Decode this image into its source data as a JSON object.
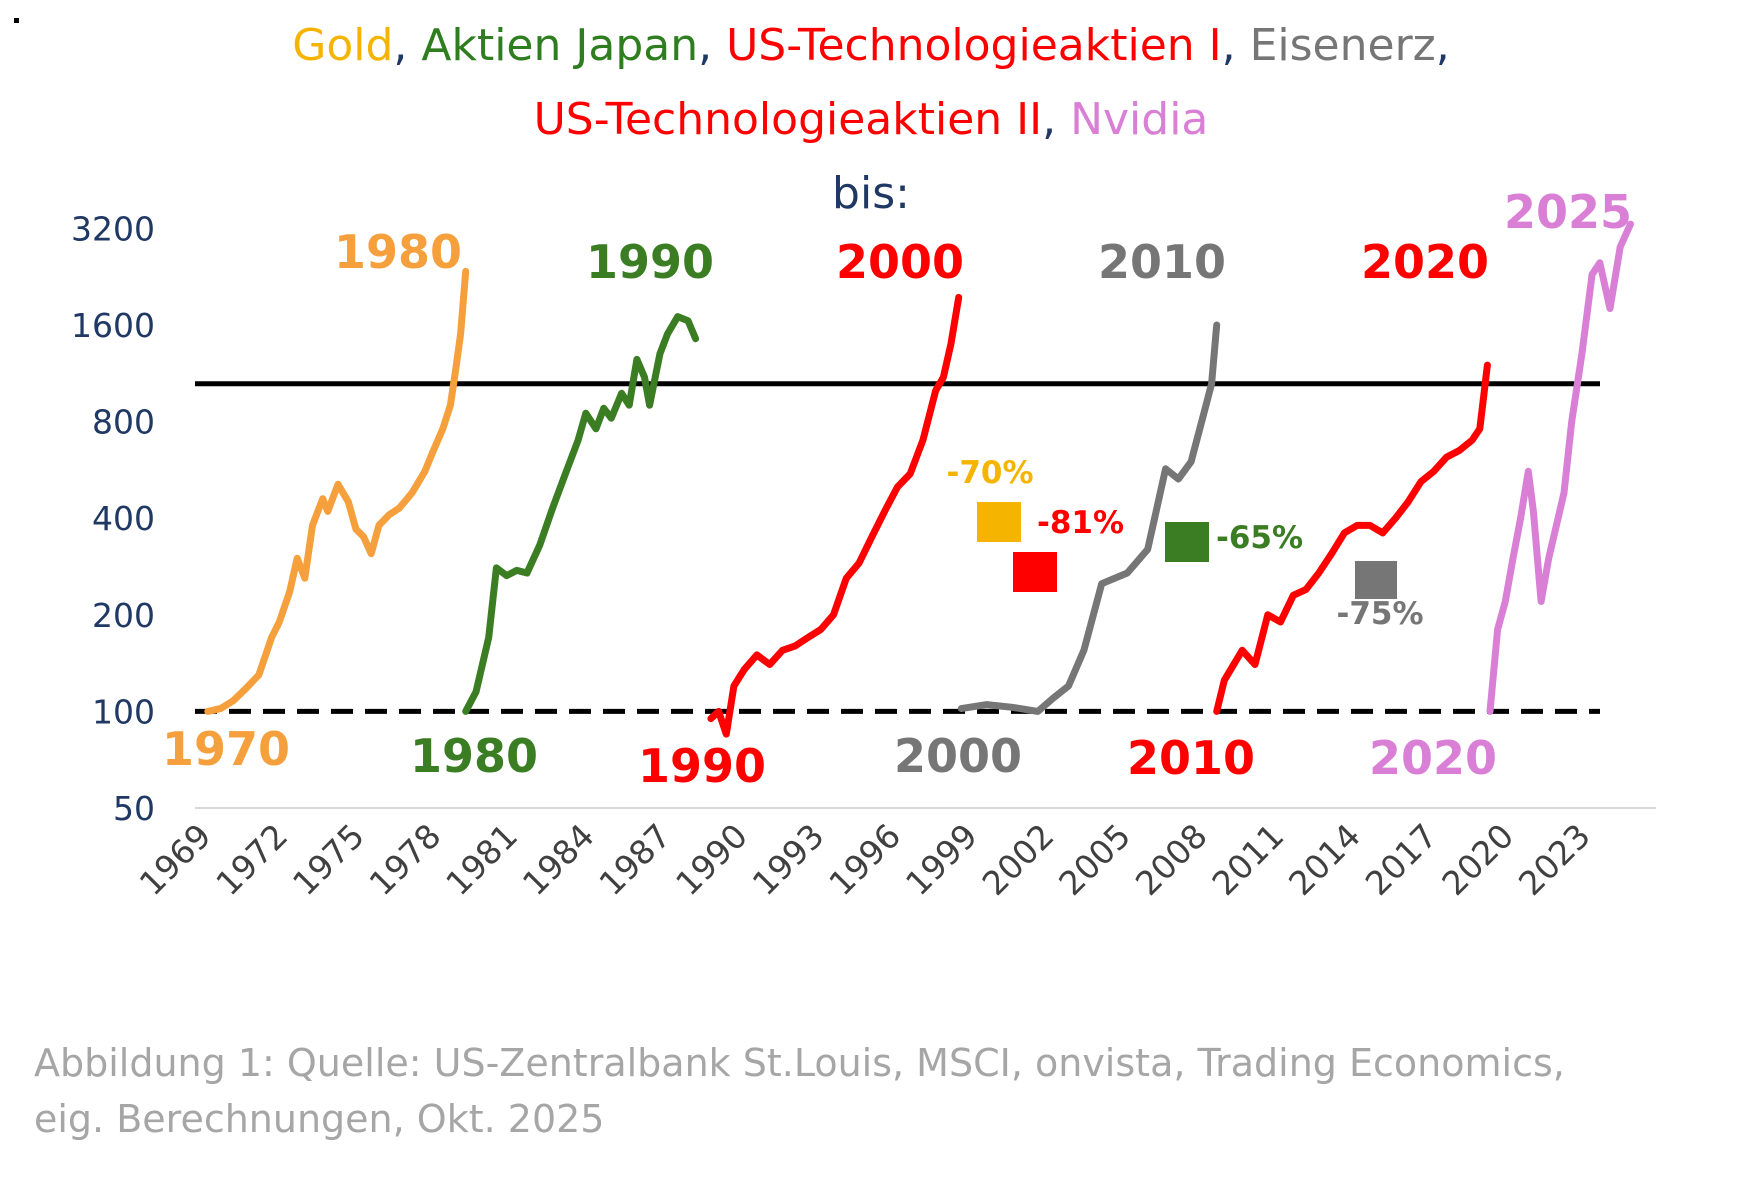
{
  "title": {
    "line1": [
      {
        "text": "Gold",
        "color": "#f5b400"
      },
      {
        "text": ", ",
        "color": "#1f3864"
      },
      {
        "text": "Aktien Japan",
        "color": "#2e7d1f"
      },
      {
        "text": ", ",
        "color": "#1f3864"
      },
      {
        "text": "US-Technologieaktien I",
        "color": "#ff0000"
      },
      {
        "text": ", ",
        "color": "#1f3864"
      },
      {
        "text": "Eisenerz",
        "color": "#767676"
      },
      {
        "text": ",",
        "color": "#1f3864"
      }
    ],
    "line2": [
      {
        "text": "US-Technologieaktien II",
        "color": "#ff0000"
      },
      {
        "text": ", ",
        "color": "#1f3864"
      },
      {
        "text": "Nvidia",
        "color": "#d97fd6"
      }
    ],
    "line3": "bis:"
  },
  "caption": {
    "line1": "Abbildung 1: Quelle: US-Zentralbank St.Louis, MSCI, onvista, Trading Economics,",
    "line2": "eig. Berechnungen, Okt. 2025"
  },
  "chart_data": {
    "type": "line",
    "x_axis": {
      "ticks": [
        "1969",
        "1972",
        "1975",
        "1978",
        "1981",
        "1984",
        "1987",
        "1990",
        "1993",
        "1996",
        "1999",
        "2002",
        "2005",
        "2008",
        "2011",
        "2014",
        "2017",
        "2020",
        "2023"
      ]
    },
    "y_axis": {
      "scale": "log2",
      "ticks": [
        50,
        100,
        200,
        400,
        800,
        1600,
        3200
      ],
      "range": [
        50,
        3600
      ]
    },
    "reference_lines": [
      {
        "value": 100,
        "style": "dashed",
        "color": "#000000"
      },
      {
        "value": 1050,
        "style": "solid",
        "color": "#000000"
      }
    ],
    "series": [
      {
        "color": "#f5a03c",
        "start_label": "1970",
        "end_label": "1980",
        "points": [
          [
            1969.5,
            100
          ],
          [
            1970,
            102
          ],
          [
            1970.5,
            108
          ],
          [
            1971,
            118
          ],
          [
            1971.5,
            130
          ],
          [
            1972,
            170
          ],
          [
            1972.3,
            190
          ],
          [
            1972.7,
            235
          ],
          [
            1973,
            300
          ],
          [
            1973.3,
            260
          ],
          [
            1973.6,
            380
          ],
          [
            1974,
            460
          ],
          [
            1974.2,
            420
          ],
          [
            1974.6,
            510
          ],
          [
            1975,
            450
          ],
          [
            1975.3,
            370
          ],
          [
            1975.6,
            350
          ],
          [
            1975.9,
            310
          ],
          [
            1976.2,
            380
          ],
          [
            1976.6,
            410
          ],
          [
            1977,
            430
          ],
          [
            1977.5,
            480
          ],
          [
            1978,
            560
          ],
          [
            1978.3,
            640
          ],
          [
            1978.7,
            760
          ],
          [
            1979,
            900
          ],
          [
            1979.2,
            1150
          ],
          [
            1979.4,
            1500
          ],
          [
            1979.6,
            2350
          ]
        ]
      },
      {
        "color": "#3a7d22",
        "start_label": "1980",
        "end_label": "1990",
        "points": [
          [
            1979.6,
            100
          ],
          [
            1980,
            115
          ],
          [
            1980.5,
            170
          ],
          [
            1980.8,
            280
          ],
          [
            1981.2,
            265
          ],
          [
            1981.6,
            275
          ],
          [
            1982,
            270
          ],
          [
            1982.5,
            330
          ],
          [
            1983,
            430
          ],
          [
            1983.5,
            550
          ],
          [
            1984,
            700
          ],
          [
            1984.3,
            850
          ],
          [
            1984.7,
            760
          ],
          [
            1985,
            880
          ],
          [
            1985.3,
            820
          ],
          [
            1985.7,
            980
          ],
          [
            1986,
            900
          ],
          [
            1986.3,
            1250
          ],
          [
            1986.6,
            1100
          ],
          [
            1986.8,
            900
          ],
          [
            1987.2,
            1300
          ],
          [
            1987.5,
            1500
          ],
          [
            1987.9,
            1700
          ],
          [
            1988.3,
            1650
          ],
          [
            1988.6,
            1450
          ]
        ]
      },
      {
        "color": "#ff0000",
        "start_label": "1990",
        "end_label": "2000",
        "points": [
          [
            1989.2,
            95
          ],
          [
            1989.5,
            100
          ],
          [
            1989.8,
            85
          ],
          [
            1990.1,
            120
          ],
          [
            1990.5,
            135
          ],
          [
            1991,
            150
          ],
          [
            1991.5,
            140
          ],
          [
            1992,
            155
          ],
          [
            1992.5,
            160
          ],
          [
            1993,
            170
          ],
          [
            1993.5,
            180
          ],
          [
            1994,
            200
          ],
          [
            1994.5,
            260
          ],
          [
            1995,
            290
          ],
          [
            1995.5,
            350
          ],
          [
            1996,
            420
          ],
          [
            1996.5,
            500
          ],
          [
            1997,
            550
          ],
          [
            1997.5,
            700
          ],
          [
            1998,
            1000
          ],
          [
            1998.3,
            1100
          ],
          [
            1998.6,
            1400
          ],
          [
            1998.9,
            1950
          ]
        ]
      },
      {
        "color": "#767676",
        "start_label": "2000",
        "end_label": "2010",
        "points": [
          [
            1999,
            102
          ],
          [
            2000,
            105
          ],
          [
            2001,
            103
          ],
          [
            2002,
            100
          ],
          [
            2002.6,
            110
          ],
          [
            2003.2,
            120
          ],
          [
            2003.8,
            155
          ],
          [
            2004.5,
            250
          ],
          [
            2005.5,
            270
          ],
          [
            2006.3,
            320
          ],
          [
            2007,
            570
          ],
          [
            2007.5,
            530
          ],
          [
            2008,
            600
          ],
          [
            2008.5,
            850
          ],
          [
            2008.8,
            1050
          ],
          [
            2009,
            1600
          ]
        ]
      },
      {
        "color": "#ff0000",
        "start_label": "2010",
        "end_label": "2020",
        "points": [
          [
            2009,
            100
          ],
          [
            2009.3,
            125
          ],
          [
            2010,
            155
          ],
          [
            2010.5,
            140
          ],
          [
            2011,
            200
          ],
          [
            2011.5,
            190
          ],
          [
            2012,
            230
          ],
          [
            2012.5,
            240
          ],
          [
            2013,
            270
          ],
          [
            2013.5,
            310
          ],
          [
            2014,
            360
          ],
          [
            2014.5,
            380
          ],
          [
            2015,
            380
          ],
          [
            2015.5,
            360
          ],
          [
            2016,
            400
          ],
          [
            2016.5,
            450
          ],
          [
            2017,
            520
          ],
          [
            2017.5,
            560
          ],
          [
            2018,
            620
          ],
          [
            2018.5,
            650
          ],
          [
            2019,
            700
          ],
          [
            2019.3,
            760
          ],
          [
            2019.6,
            1200
          ]
        ]
      },
      {
        "color": "#d97fd6",
        "start_label": "2020",
        "end_label": "2025",
        "points": [
          [
            2019.7,
            100
          ],
          [
            2020,
            180
          ],
          [
            2020.3,
            220
          ],
          [
            2020.6,
            300
          ],
          [
            2020.9,
            400
          ],
          [
            2021.2,
            560
          ],
          [
            2021.4,
            420
          ],
          [
            2021.7,
            220
          ],
          [
            2022,
            300
          ],
          [
            2022.3,
            380
          ],
          [
            2022.6,
            480
          ],
          [
            2022.9,
            800
          ],
          [
            2023.3,
            1300
          ],
          [
            2023.7,
            2300
          ],
          [
            2024,
            2500
          ],
          [
            2024.4,
            1800
          ],
          [
            2024.8,
            2800
          ],
          [
            2025.2,
            3300
          ]
        ]
      }
    ],
    "annotations": [
      {
        "text": "1970",
        "color": "#f5a03c"
      },
      {
        "text": "1980",
        "color": "#f5a03c"
      },
      {
        "text": "1980",
        "color": "#3a7d22"
      },
      {
        "text": "1990",
        "color": "#3a7d22"
      },
      {
        "text": "1990",
        "color": "#ff0000"
      },
      {
        "text": "2000",
        "color": "#ff0000"
      },
      {
        "text": "2000",
        "color": "#767676"
      },
      {
        "text": "2010",
        "color": "#767676"
      },
      {
        "text": "2010",
        "color": "#ff0000"
      },
      {
        "text": "2020",
        "color": "#ff0000"
      },
      {
        "text": "2020",
        "color": "#d97fd6"
      },
      {
        "text": "2025",
        "color": "#d97fd6"
      }
    ],
    "drawdowns": [
      {
        "text": "-70%",
        "color": "#f5b400"
      },
      {
        "text": "-81%",
        "color": "#ff0000"
      },
      {
        "text": "-65%",
        "color": "#3a7d22"
      },
      {
        "text": "-75%",
        "color": "#767676"
      }
    ]
  }
}
